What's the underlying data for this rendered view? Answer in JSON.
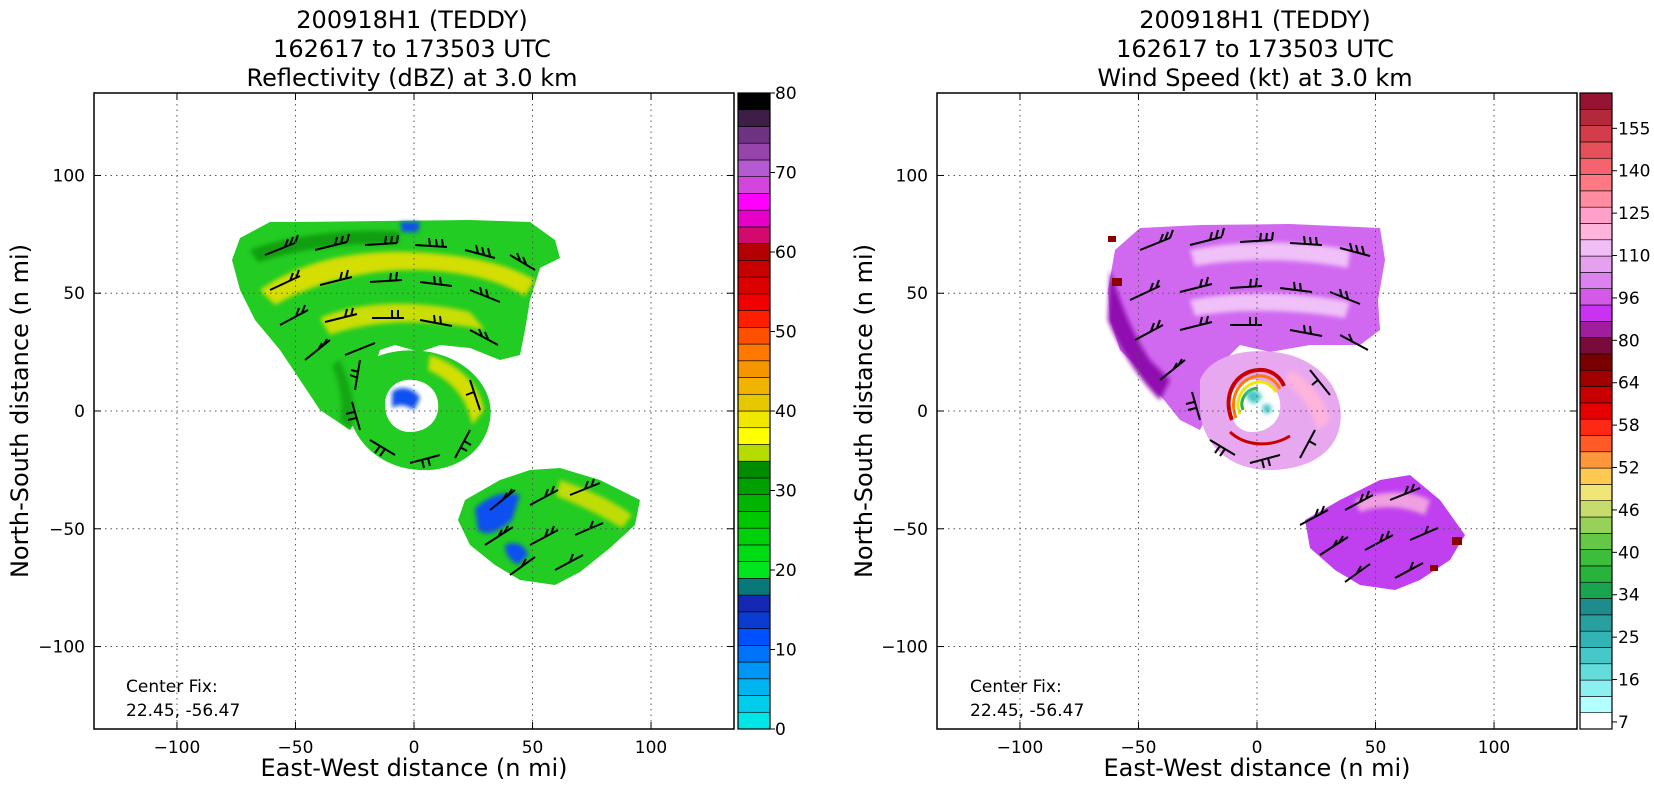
{
  "charts": [
    {
      "title_lines": [
        "200918H1 (TEDDY)",
        "162617 to 173503 UTC",
        "Reflectivity (dBZ) at 3.0 km"
      ],
      "xlabel": "East-West distance (n mi)",
      "ylabel": "North-South distance (n mi)",
      "annotation_lines": [
        "Center Fix:",
        "22.45, -56.47"
      ],
      "colorbar_ticks": [
        "0",
        "10",
        "20",
        "30",
        "40",
        "50",
        "60",
        "70",
        "80"
      ],
      "colorbar_colors": [
        "#00e6e6",
        "#00cdeb",
        "#00b4ef",
        "#0096f5",
        "#0073fa",
        "#0050ff",
        "#0a3cd2",
        "#1428b4",
        "#0a7878",
        "#00e61e",
        "#00dc14",
        "#00d20a",
        "#00c800",
        "#00b400",
        "#00a000",
        "#008c00",
        "#b4dc00",
        "#ffff00",
        "#f0e600",
        "#e6c800",
        "#f0b400",
        "#f59600",
        "#ff7800",
        "#ff5000",
        "#ff1e00",
        "#f00000",
        "#dc0000",
        "#c80000",
        "#b40000",
        "#d20a6e",
        "#e600c8",
        "#ff00ff",
        "#d246dc",
        "#b45ad2",
        "#9646aa",
        "#6e3282",
        "#3c1e46",
        "#000000"
      ],
      "xticks": [
        "−100",
        "−50",
        "0",
        "50",
        "100"
      ],
      "yticks": [
        "100",
        "50",
        "0",
        "−50",
        "−100"
      ]
    },
    {
      "title_lines": [
        "200918H1 (TEDDY)",
        "162617 to 173503 UTC",
        "Wind Speed (kt) at 3.0 km"
      ],
      "xlabel": "East-West distance (n mi)",
      "ylabel": "North-South distance (n mi)",
      "annotation_lines": [
        "Center Fix:",
        "22.45, -56.47"
      ],
      "colorbar_ticks": [
        "7",
        "16",
        "25",
        "34",
        "40",
        "46",
        "52",
        "58",
        "64",
        "80",
        "96",
        "110",
        "125",
        "140",
        "155"
      ],
      "colorbar_colors": [
        "#ffffff",
        "#b4ffff",
        "#8cf0f0",
        "#64dcdc",
        "#46c8c8",
        "#32b4b4",
        "#28a0a0",
        "#1e8c8c",
        "#19a550",
        "#28b43c",
        "#3cbe3c",
        "#64c846",
        "#96d25a",
        "#c8dc6e",
        "#f0e678",
        "#ffc850",
        "#ff963c",
        "#ff5a28",
        "#ff2814",
        "#e60000",
        "#c80000",
        "#a00000",
        "#780000",
        "#780a3c",
        "#a01e9b",
        "#c832f0",
        "#d25ae6",
        "#dc82f0",
        "#e6a0f0",
        "#f0bef5",
        "#ffb4dc",
        "#ffa0c8",
        "#ff8ca0",
        "#ff7882",
        "#f5646e",
        "#e6505a",
        "#d23c4b",
        "#b4283c",
        "#961432"
      ],
      "xticks": [
        "−100",
        "−50",
        "0",
        "50",
        "100"
      ],
      "yticks": [
        "100",
        "50",
        "0",
        "−50",
        "−100"
      ]
    }
  ],
  "chart_data": [
    {
      "type": "heatmap",
      "variable": "Reflectivity",
      "units": "dBZ",
      "xlim": [
        -135,
        135
      ],
      "ylim": [
        -135,
        135
      ],
      "xticks": [
        -100,
        -50,
        0,
        50,
        100
      ],
      "yticks": [
        100,
        50,
        0,
        -50,
        -100
      ],
      "colorbar_range": [
        0,
        80
      ],
      "colorbar_ticks": [
        0,
        10,
        20,
        30,
        40,
        50,
        60,
        70,
        80
      ],
      "grid": true,
      "center_fix": [
        22.45,
        -56.47
      ]
    },
    {
      "type": "heatmap",
      "variable": "Wind Speed",
      "units": "kt",
      "xlim": [
        -135,
        135
      ],
      "ylim": [
        -135,
        135
      ],
      "xticks": [
        -100,
        -50,
        0,
        50,
        100
      ],
      "yticks": [
        100,
        50,
        0,
        -50,
        -100
      ],
      "colorbar_ticks": [
        7,
        16,
        25,
        34,
        40,
        46,
        52,
        58,
        64,
        80,
        96,
        110,
        125,
        140,
        155
      ],
      "grid": true,
      "center_fix": [
        22.45,
        -56.47
      ]
    }
  ]
}
